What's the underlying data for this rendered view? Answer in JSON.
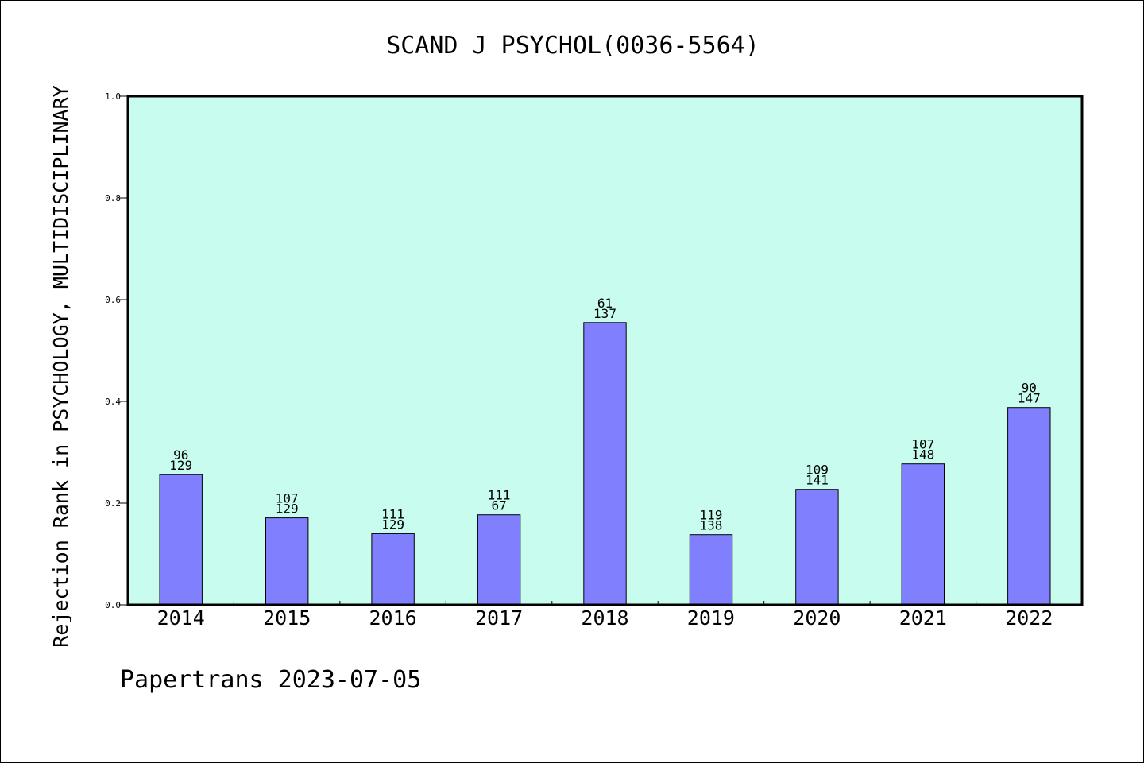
{
  "chart_data": {
    "type": "bar",
    "title": "SCAND J PSYCHOL(0036-5564)",
    "xlabel": "",
    "ylabel": "Rejection Rank in PSYCHOLOGY, MULTIDISCIPLINARY",
    "categories": [
      "2014",
      "2015",
      "2016",
      "2017",
      "2018",
      "2019",
      "2020",
      "2021",
      "2022"
    ],
    "values": [
      0.256,
      0.171,
      0.14,
      0.177,
      0.555,
      0.138,
      0.227,
      0.277,
      0.388
    ],
    "labels_top": [
      "96",
      "107",
      "111",
      "111",
      "61",
      "119",
      "109",
      "107",
      "90"
    ],
    "labels_bottom": [
      "129",
      "129",
      "129",
      "67",
      "137",
      "138",
      "141",
      "148",
      "147"
    ],
    "ylim": [
      0.0,
      1.0
    ],
    "yticks": [
      "0.0",
      "0.2",
      "0.4",
      "0.6",
      "0.8",
      "1.0"
    ],
    "grid": false,
    "colors": {
      "plot_background": "#c8fcee",
      "bar_fill": "#8080ff",
      "bar_edge": "#000000"
    }
  },
  "footer": {
    "text": "Papertrans 2023-07-05"
  }
}
